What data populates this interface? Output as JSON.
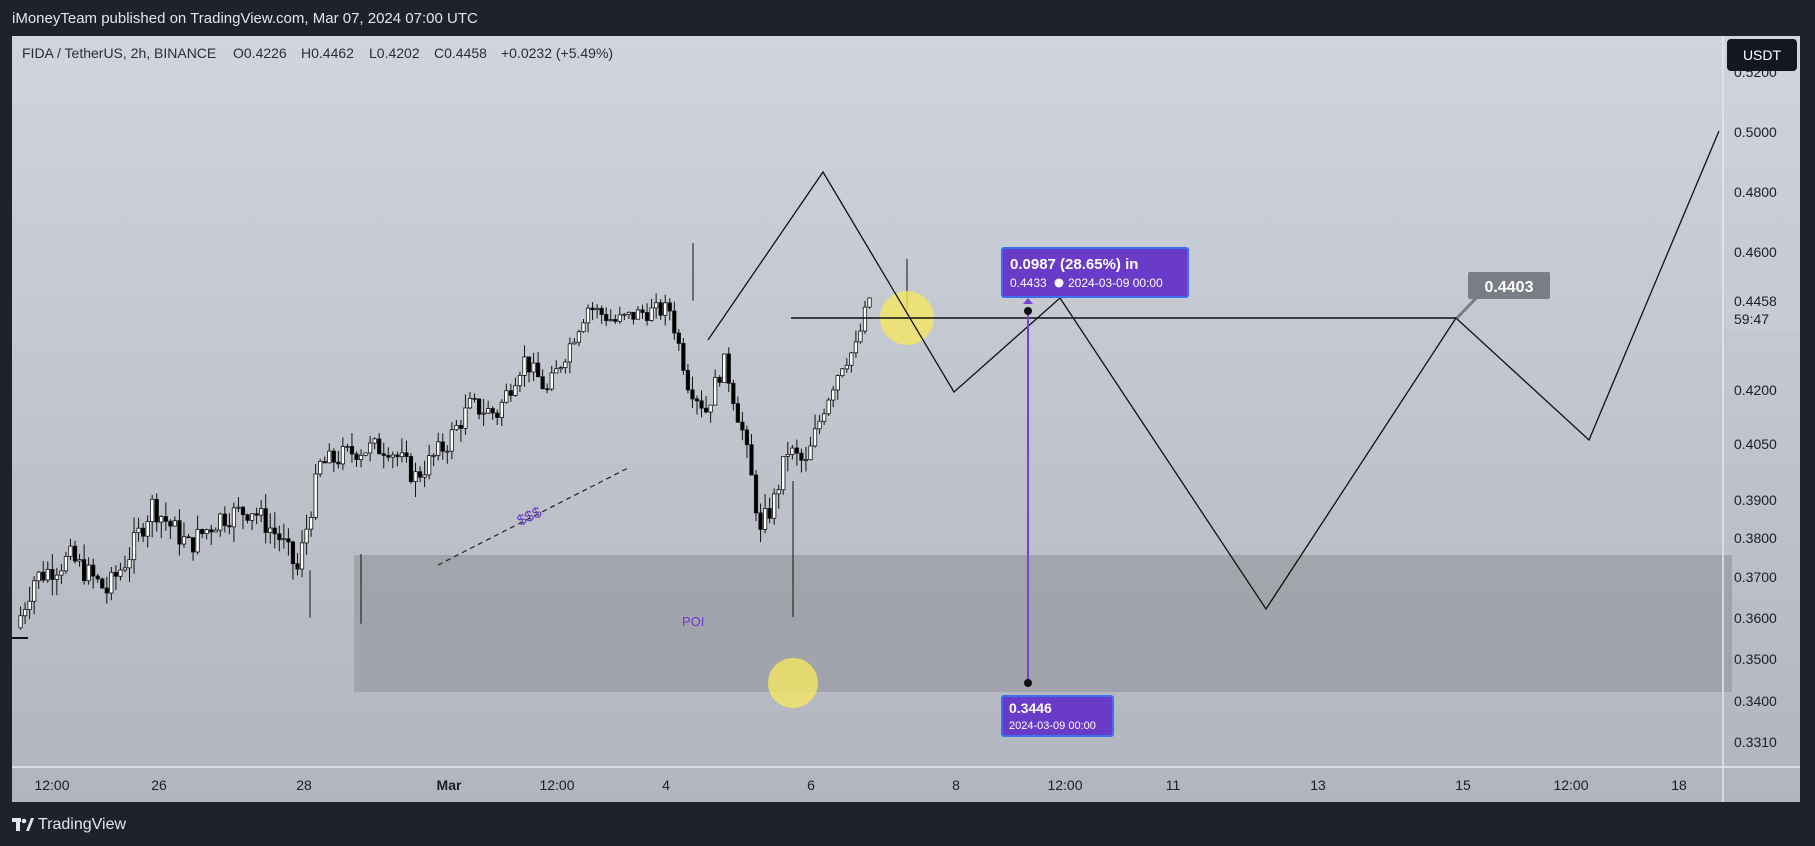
{
  "header": {
    "published_line": "iMoneyTeam published on TradingView.com, Mar 07, 2024 07:00 UTC"
  },
  "footer": {
    "brand": "TradingView"
  },
  "colors": {
    "background": "#1f222a",
    "candle_up": "#ffffff",
    "candle_down": "#000000",
    "measure_purple": "#7b3fd6",
    "measure_box": "#6a3bc9",
    "highlight": "#f5e663",
    "zone": "#9a9ca3",
    "price_label": "#7a7d85"
  },
  "chart_data": {
    "type": "candlestick",
    "title": "FIDA / TetherUS, 2h, BINANCE",
    "ohlc_readout": {
      "symbol": "FIDA / TetherUS, 2h, BINANCE",
      "open": "O0.4226",
      "high": "H0.4462",
      "low": "L0.4202",
      "close": "C0.4458",
      "change": "+0.0232 (+5.49%)"
    },
    "currency_button": "USDT",
    "y_tick_labels": [
      "0.5000",
      "0.4800",
      "0.4600",
      "0.4200",
      "0.4050",
      "0.3900",
      "0.3800",
      "0.3700",
      "0.3600",
      "0.3500",
      "0.3400",
      "0.3310"
    ],
    "y_top_partial": "0.5200",
    "x_tick_labels": [
      "12:00",
      "26",
      "28",
      "Mar",
      "12:00",
      "4",
      "6",
      "8",
      "12:00",
      "11",
      "13",
      "15",
      "12:00",
      "18"
    ],
    "current_price": {
      "value": "0.4458",
      "countdown": "59:47"
    },
    "annotations": {
      "sss_label": "$$$",
      "poi_label": "POI",
      "level_label": "0.4403",
      "measure_top_title": "0.0987 (28.65%) in",
      "measure_top_price": "0.4433",
      "measure_top_date": "2024-03-09  00:00",
      "measure_bottom_price": "0.3446",
      "measure_bottom_date": "2024-03-09 00:00"
    },
    "levels": {
      "horizontal_line": 0.4403,
      "poi_zone": [
        0.3426,
        0.3755
      ]
    },
    "projection_path": [
      0.432,
      0.486,
      0.418,
      0.441,
      0.361,
      0.4405,
      0.404,
      0.5
    ],
    "price_range_shown": [
      0.331,
      0.52
    ],
    "grid": false,
    "legend_position": "top-left"
  }
}
